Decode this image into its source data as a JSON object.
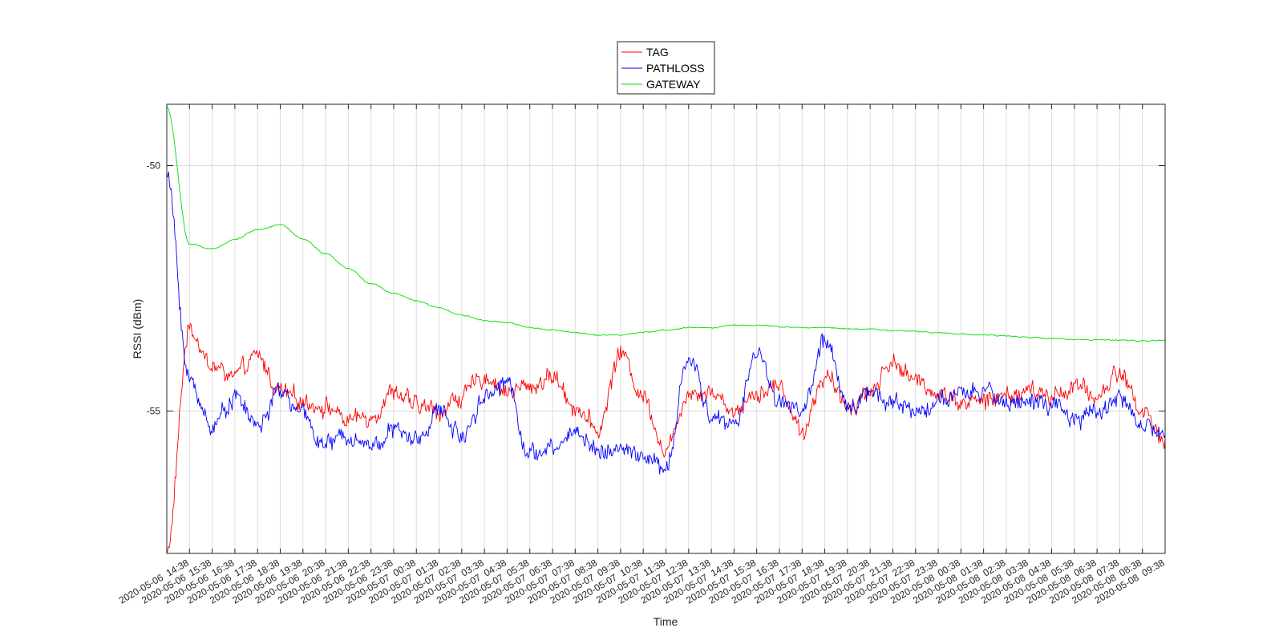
{
  "chart_data": {
    "type": "line",
    "title": "",
    "xlabel": "Time",
    "ylabel": "RSSI (dBm)",
    "xlim": [
      "2020-05-06 13:38",
      "2020-05-08 09:38"
    ],
    "ylim": [
      -57.9,
      -48.75
    ],
    "y_ticks": [
      -50,
      -55
    ],
    "y_tick_labels": [
      "-50",
      "-55"
    ],
    "x_tick_labels": [
      "2020-05-06  14:38",
      "2020-05-06  15:38",
      "2020-05-06  16:38",
      "2020-05-06  17:38",
      "2020-05-06  18:38",
      "2020-05-06  19:38",
      "2020-05-06  20:38",
      "2020-05-06  21:38",
      "2020-05-06  22:38",
      "2020-05-06  23:38",
      "2020-05-07  00:38",
      "2020-05-07  01:38",
      "2020-05-07  02:38",
      "2020-05-07  03:38",
      "2020-05-07  04:38",
      "2020-05-07  05:38",
      "2020-05-07  06:38",
      "2020-05-07  07:38",
      "2020-05-07  08:38",
      "2020-05-07  09:38",
      "2020-05-07  10:38",
      "2020-05-07  11:38",
      "2020-05-07  12:38",
      "2020-05-07  13:38",
      "2020-05-07  14:38",
      "2020-05-07  15:38",
      "2020-05-07  16:38",
      "2020-05-07  17:38",
      "2020-05-07  18:38",
      "2020-05-07  19:38",
      "2020-05-07  20:38",
      "2020-05-07  21:38",
      "2020-05-07  22:38",
      "2020-05-07  23:38",
      "2020-05-08  00:38",
      "2020-05-08  01:38",
      "2020-05-08  02:38",
      "2020-05-08  03:38",
      "2020-05-08  04:38",
      "2020-05-08  05:38",
      "2020-05-08  06:38",
      "2020-05-08  07:38",
      "2020-05-08  08:38",
      "2020-05-08  09:38"
    ],
    "grid": true,
    "legend_position": "top-center-outside",
    "x": [
      "2020-05-06 13:38",
      "2020-05-06 14:38",
      "2020-05-06 15:38",
      "2020-05-06 16:38",
      "2020-05-06 17:38",
      "2020-05-06 18:38",
      "2020-05-06 19:38",
      "2020-05-06 20:38",
      "2020-05-06 21:38",
      "2020-05-06 22:38",
      "2020-05-06 23:38",
      "2020-05-07 00:38",
      "2020-05-07 01:38",
      "2020-05-07 02:38",
      "2020-05-07 03:38",
      "2020-05-07 04:38",
      "2020-05-07 05:38",
      "2020-05-07 06:38",
      "2020-05-07 07:38",
      "2020-05-07 08:38",
      "2020-05-07 09:38",
      "2020-05-07 10:38",
      "2020-05-07 11:38",
      "2020-05-07 12:38",
      "2020-05-07 13:38",
      "2020-05-07 14:38",
      "2020-05-07 15:38",
      "2020-05-07 16:38",
      "2020-05-07 17:38",
      "2020-05-07 18:38",
      "2020-05-07 19:38",
      "2020-05-07 20:38",
      "2020-05-07 21:38",
      "2020-05-07 22:38",
      "2020-05-07 23:38",
      "2020-05-08 00:38",
      "2020-05-08 01:38",
      "2020-05-08 02:38",
      "2020-05-08 03:38",
      "2020-05-08 04:38",
      "2020-05-08 05:38",
      "2020-05-08 06:38",
      "2020-05-08 07:38",
      "2020-05-08 08:38",
      "2020-05-08 09:38"
    ],
    "series": [
      {
        "name": "TAG",
        "color": "#ff0000",
        "values": [
          -57.9,
          -53.3,
          -54.1,
          -54.3,
          -53.9,
          -54.6,
          -54.8,
          -54.9,
          -55.2,
          -55.1,
          -54.6,
          -54.9,
          -55.0,
          -54.7,
          -54.3,
          -54.6,
          -54.5,
          -54.3,
          -54.9,
          -55.4,
          -53.8,
          -54.7,
          -55.8,
          -54.6,
          -54.6,
          -55.0,
          -54.6,
          -54.5,
          -55.4,
          -54.3,
          -54.9,
          -54.6,
          -54.0,
          -54.4,
          -54.6,
          -54.8,
          -54.8,
          -54.7,
          -54.6,
          -54.7,
          -54.5,
          -54.7,
          -54.2,
          -55.0,
          -55.6
        ]
      },
      {
        "name": "PATHLOSS",
        "color": "#0000ff",
        "values": [
          -50.2,
          -54.4,
          -55.3,
          -54.7,
          -55.3,
          -54.6,
          -55.1,
          -55.7,
          -55.5,
          -55.7,
          -55.4,
          -55.6,
          -55.0,
          -55.5,
          -54.7,
          -54.4,
          -55.9,
          -55.8,
          -55.4,
          -55.8,
          -55.8,
          -55.9,
          -56.2,
          -53.9,
          -55.1,
          -55.3,
          -53.8,
          -54.8,
          -55.0,
          -53.6,
          -54.9,
          -54.6,
          -54.8,
          -55.0,
          -54.8,
          -54.7,
          -54.6,
          -54.8,
          -54.8,
          -54.9,
          -55.2,
          -55.0,
          -54.7,
          -55.3,
          -55.5
        ]
      },
      {
        "name": "GATEWAY",
        "color": "#00dd00",
        "values": [
          -48.8,
          -51.6,
          -51.7,
          -51.5,
          -51.3,
          -51.2,
          -51.5,
          -51.8,
          -52.1,
          -52.4,
          -52.6,
          -52.75,
          -52.9,
          -53.05,
          -53.15,
          -53.2,
          -53.3,
          -53.35,
          -53.4,
          -53.45,
          -53.45,
          -53.4,
          -53.35,
          -53.3,
          -53.3,
          -53.25,
          -53.25,
          -53.28,
          -53.3,
          -53.3,
          -53.32,
          -53.33,
          -53.36,
          -53.38,
          -53.4,
          -53.43,
          -53.45,
          -53.47,
          -53.5,
          -53.52,
          -53.54,
          -53.55,
          -53.56,
          -53.57,
          -53.56
        ]
      }
    ]
  }
}
